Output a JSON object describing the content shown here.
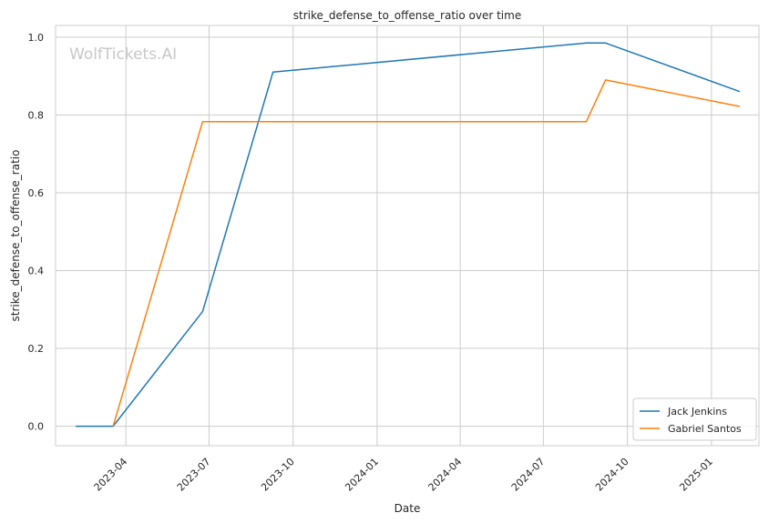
{
  "chart_data": {
    "type": "line",
    "title": "strike_defense_to_offense_ratio over time",
    "xlabel": "Date",
    "ylabel": "strike_defense_to_offense_ratio",
    "watermark": "WolfTickets.AI",
    "xlim": [
      "2023-01-14",
      "2025-02-22"
    ],
    "ylim": [
      -0.05,
      1.03
    ],
    "x_ticks": [
      {
        "date": "2023-04-01",
        "label": "2023-04"
      },
      {
        "date": "2023-07-01",
        "label": "2023-07"
      },
      {
        "date": "2023-10-01",
        "label": "2023-10"
      },
      {
        "date": "2024-01-01",
        "label": "2024-01"
      },
      {
        "date": "2024-04-01",
        "label": "2024-04"
      },
      {
        "date": "2024-07-01",
        "label": "2024-07"
      },
      {
        "date": "2024-10-01",
        "label": "2024-10"
      },
      {
        "date": "2025-01-01",
        "label": "2025-01"
      }
    ],
    "y_ticks": [
      0.0,
      0.2,
      0.4,
      0.6,
      0.8,
      1.0
    ],
    "y_tick_labels": [
      "0.0",
      "0.2",
      "0.4",
      "0.6",
      "0.8",
      "1.0"
    ],
    "grid": true,
    "legend_position": "bottom-right",
    "series": [
      {
        "name": "Jack Jenkins",
        "color": "#1f77b4",
        "points": [
          {
            "x": "2023-02-05",
            "y": 0.0
          },
          {
            "x": "2023-03-18",
            "y": 0.0
          },
          {
            "x": "2023-06-24",
            "y": 0.295
          },
          {
            "x": "2023-09-09",
            "y": 0.91
          },
          {
            "x": "2024-08-17",
            "y": 0.985
          },
          {
            "x": "2024-09-07",
            "y": 0.985
          },
          {
            "x": "2025-02-01",
            "y": 0.86
          }
        ]
      },
      {
        "name": "Gabriel Santos",
        "color": "#ff7f0e",
        "points": [
          {
            "x": "2023-03-18",
            "y": 0.0
          },
          {
            "x": "2023-06-24",
            "y": 0.783
          },
          {
            "x": "2024-08-17",
            "y": 0.783
          },
          {
            "x": "2024-09-07",
            "y": 0.89
          },
          {
            "x": "2025-02-01",
            "y": 0.822
          }
        ]
      }
    ]
  }
}
